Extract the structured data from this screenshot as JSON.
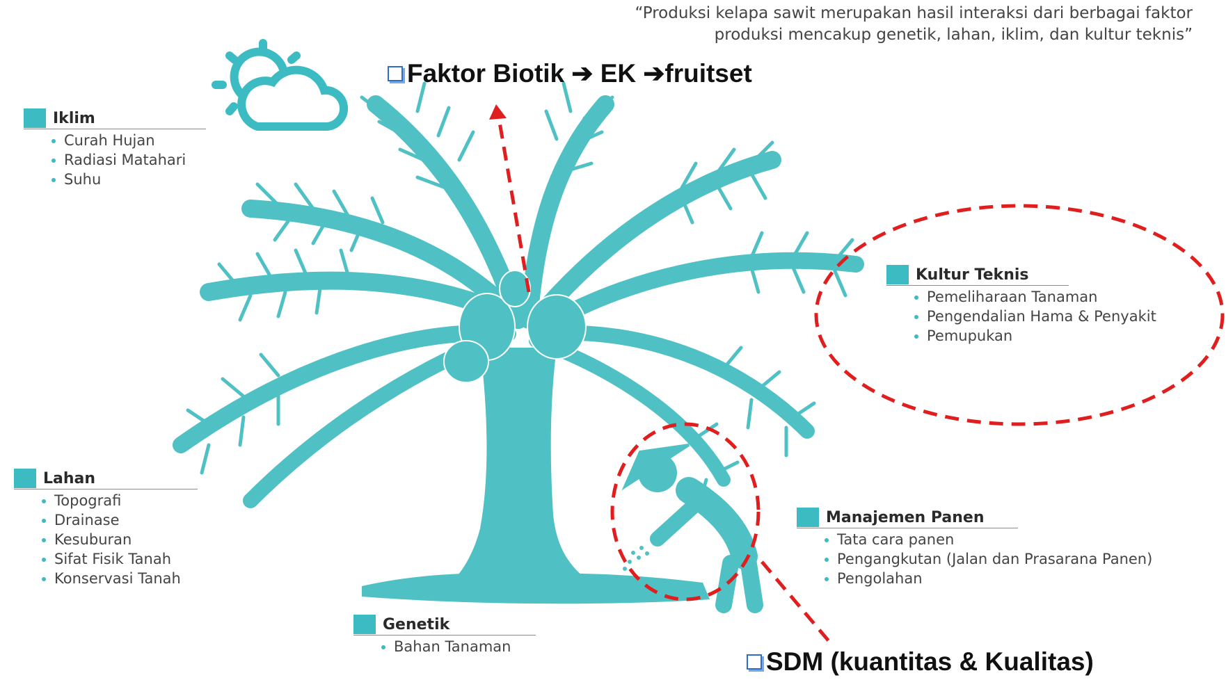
{
  "quote": "“Produksi kelapa sawit merupakan hasil interaksi dari berbagai faktor produksi mencakup genetik, lahan, iklim, dan kultur teknis”",
  "colors": {
    "teal": "#3cbcc2",
    "annotation_red": "#e01e1e",
    "checkbox_blue": "#2b6fc6"
  },
  "icons": [
    "sun-cloud-icon",
    "palm-tree-icon",
    "farmer-icon"
  ],
  "sections": {
    "iklim": {
      "title": "Iklim",
      "items": [
        "Curah Hujan",
        "Radiasi Matahari",
        "Suhu"
      ]
    },
    "lahan": {
      "title": "Lahan",
      "items": [
        "Topografi",
        "Drainase",
        "Kesuburan",
        "Sifat Fisik Tanah",
        "Konservasi Tanah"
      ]
    },
    "genetik": {
      "title": "Genetik",
      "items": [
        "Bahan Tanaman"
      ]
    },
    "kultur": {
      "title": "Kultur Teknis",
      "items": [
        "Pemeliharaan Tanaman",
        "Pengendalian Hama & Penyakit",
        "Pemupukan"
      ]
    },
    "panen": {
      "title": "Manajemen Panen",
      "items": [
        "Tata cara panen",
        "Pengangkutan (Jalan dan Prasarana Panen)",
        "Pengolahan"
      ]
    }
  },
  "callouts": {
    "biotik": "Faktor Biotik ➔ EK ➔fruitset",
    "sdm": "SDM (kuantitas & Kualitas)"
  }
}
